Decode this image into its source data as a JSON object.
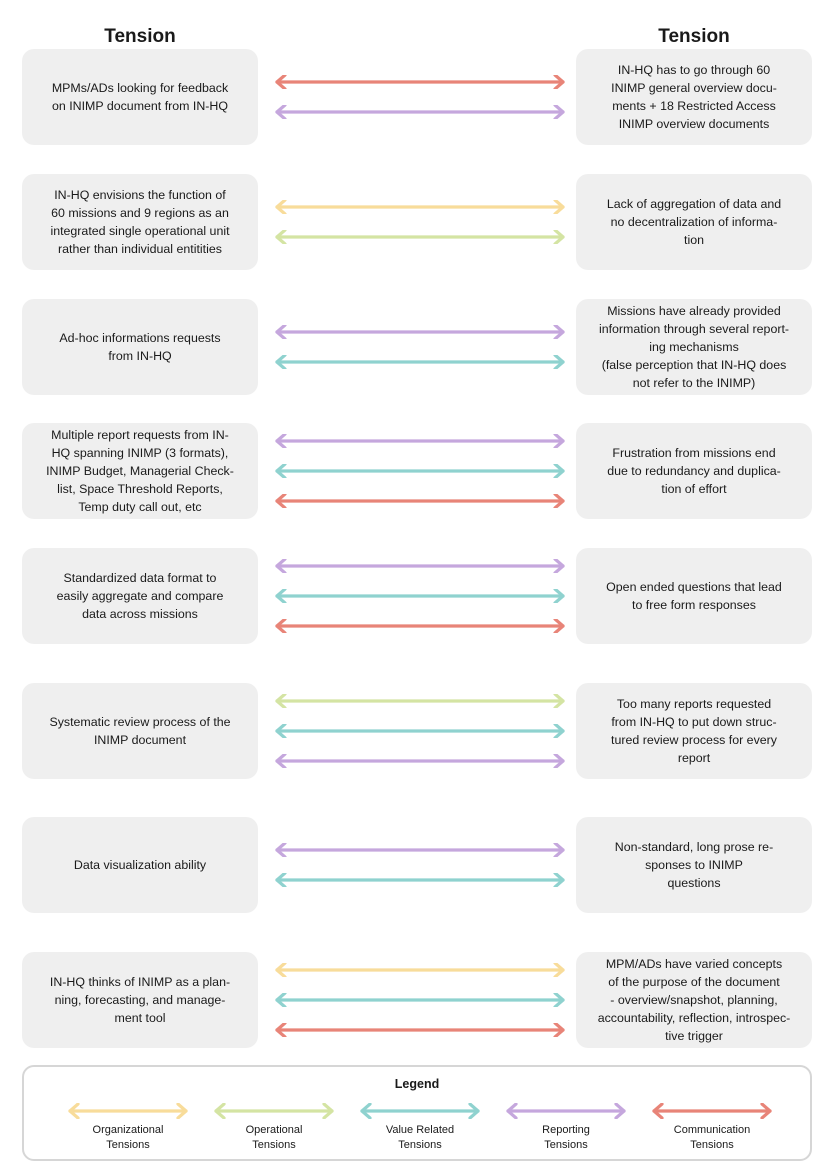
{
  "headings": {
    "left": "Tension",
    "right": "Tension"
  },
  "colors": {
    "organizational": "#f8dc9a",
    "operational": "#d4e4a3",
    "value": "#8fd2cf",
    "reporting": "#c5a7dd",
    "communication": "#e88478"
  },
  "rows": [
    {
      "left": "MPMs/ADs looking for feedback\non INIMP document from IN-HQ",
      "right": "IN-HQ has to go through 60\nINIMP general overview docu-\nments + 18 Restricted Access\nINIMP overview documents",
      "arrows": [
        "communication",
        "reporting"
      ]
    },
    {
      "left": "IN-HQ envisions the function of\n60 missions and 9 regions as an\nintegrated single operational unit\nrather than individual entitities",
      "right": "Lack of aggregation of data and\nno decentralization of informa-\ntion",
      "arrows": [
        "organizational",
        "operational"
      ]
    },
    {
      "left": "Ad-hoc informations requests\nfrom IN-HQ",
      "right": "Missions have already provided\ninformation through several report-\ning mechanisms\n(false perception that IN-HQ does\nnot refer to the INIMP)",
      "arrows": [
        "reporting",
        "value"
      ]
    },
    {
      "left": "Multiple report requests from IN-\nHQ spanning INIMP (3 formats),\nINIMP Budget, Managerial Check-\nlist, Space Threshold Reports,\nTemp duty call out, etc",
      "right": "Frustration from missions end\ndue to redundancy and duplica-\ntion of effort",
      "arrows": [
        "reporting",
        "value",
        "communication"
      ]
    },
    {
      "left": "Standardized data format to\neasily aggregate and compare\ndata across missions",
      "right": "Open ended questions that lead\nto free form responses",
      "arrows": [
        "reporting",
        "value",
        "communication"
      ]
    },
    {
      "left": "Systematic review process of the\nINIMP document",
      "right": "Too many reports requested\nfrom IN-HQ to put down struc-\ntured review process for every\nreport",
      "arrows": [
        "operational",
        "value",
        "reporting"
      ]
    },
    {
      "left": "Data visualization ability",
      "right": "Non-standard, long prose re-\nsponses to INIMP\nquestions",
      "arrows": [
        "reporting",
        "value"
      ]
    },
    {
      "left": "IN-HQ thinks of INIMP as a plan-\nning, forecasting, and manage-\nment tool",
      "right": "MPM/ADs have varied concepts\nof the purpose of the document\n- overview/snapshot, planning,\naccountability, reflection, introspec-\ntive trigger",
      "arrows": [
        "organizational",
        "value",
        "communication"
      ]
    }
  ],
  "legend": {
    "title": "Legend",
    "items": [
      {
        "key": "organizational",
        "label": "Organizational\nTensions"
      },
      {
        "key": "operational",
        "label": "Operational\nTensions"
      },
      {
        "key": "value",
        "label": "Value Related\nTensions"
      },
      {
        "key": "reporting",
        "label": "Reporting\nTensions"
      },
      {
        "key": "communication",
        "label": "Communication\nTensions"
      }
    ]
  }
}
